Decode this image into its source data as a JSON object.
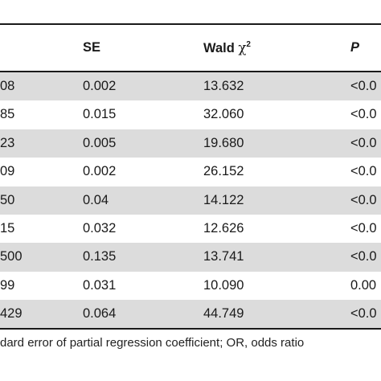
{
  "table": {
    "headers": {
      "se": "SE",
      "wald": "Wald ",
      "wald_symbol": "χ",
      "wald_sup": "2",
      "p": "P"
    },
    "rows": [
      {
        "c0": "08",
        "se": "0.002",
        "wald": "13.632",
        "p": "<0.0",
        "shaded": true
      },
      {
        "c0": "85",
        "se": "0.015",
        "wald": "32.060",
        "p": "<0.0",
        "shaded": false
      },
      {
        "c0": "23",
        "se": "0.005",
        "wald": "19.680",
        "p": "<0.0",
        "shaded": true
      },
      {
        "c0": "09",
        "se": "0.002",
        "wald": "26.152",
        "p": "<0.0",
        "shaded": false
      },
      {
        "c0": "50",
        "se": "0.04",
        "wald": "14.122",
        "p": "<0.0",
        "shaded": true
      },
      {
        "c0": "15",
        "se": "0.032",
        "wald": "12.626",
        "p": "<0.0",
        "shaded": false
      },
      {
        "c0": "500",
        "se": "0.135",
        "wald": "13.741",
        "p": "<0.0",
        "shaded": true
      },
      {
        "c0": "99",
        "se": "0.031",
        "wald": "10.090",
        "p": "0.00",
        "shaded": false
      },
      {
        "c0": "429",
        "se": "0.064",
        "wald": "44.749",
        "p": "<0.0",
        "shaded": true
      }
    ]
  },
  "footnote": "dard error of partial regression coefficient; OR, odds ratio"
}
